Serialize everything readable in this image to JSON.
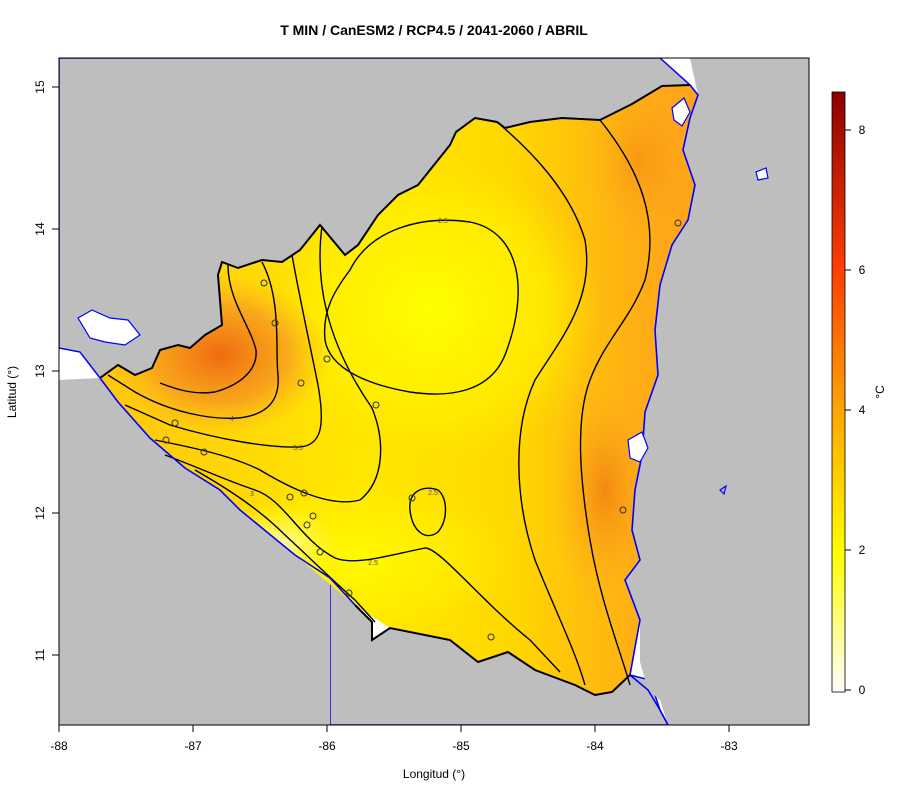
{
  "map": {
    "title": "T MIN / CanESM2 / RCP4.5 / 2041-2060 / ABRIL",
    "x_axis": {
      "label": "Longitud (°)",
      "ticks": [
        "-88",
        "-87",
        "-86",
        "-85",
        "-84",
        "-83"
      ]
    },
    "y_axis": {
      "label": "Latitud (°)",
      "ticks": [
        "11",
        "12",
        "13",
        "14",
        "15"
      ]
    },
    "colorbar": {
      "unit": "°C",
      "ticks": [
        "0",
        "2",
        "4",
        "6",
        "8"
      ],
      "range": [
        0,
        8.5
      ]
    },
    "contour_labels": [
      "4",
      "3.5",
      "3",
      "2.5",
      "2.5",
      "2.5"
    ],
    "colors": {
      "land_outside": "#bebebe",
      "sea": "#ffffff",
      "coastline": "#0000ff",
      "contour": "#000000",
      "scale": [
        "#ffffff",
        "#ffff00",
        "#ffa500",
        "#ff0000",
        "#8b0000"
      ]
    }
  }
}
